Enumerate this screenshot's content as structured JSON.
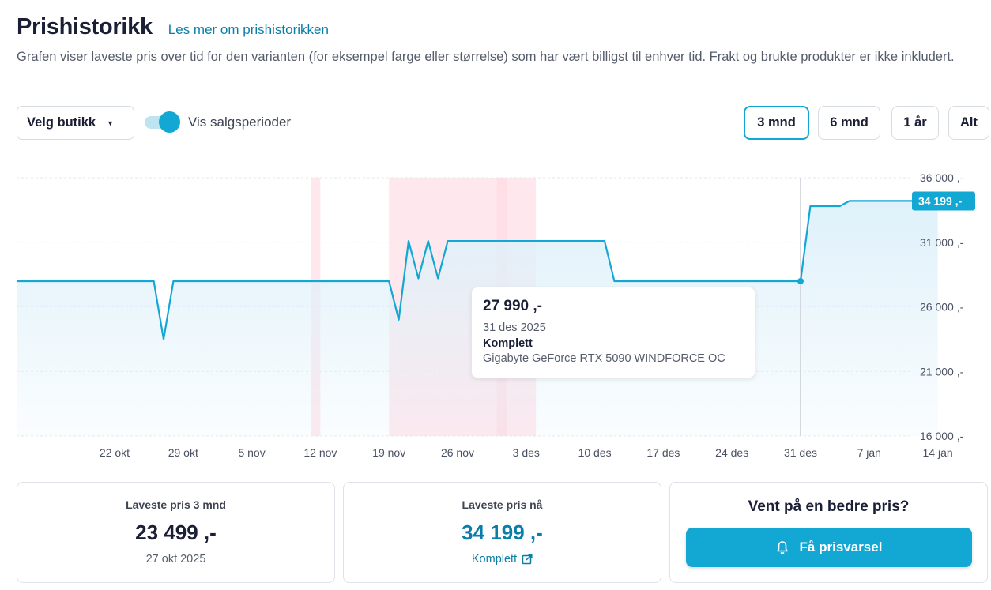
{
  "header": {
    "title": "Prishistorikk",
    "learn_more_link": "Les mer om prishistorikken",
    "description": "Grafen viser laveste pris over tid for den varianten (for eksempel farge eller størrelse) som har vært billigst til enhver tid. Frakt og brukte produkter er ikke inkludert."
  },
  "controls": {
    "store_select": "Velg butikk",
    "sale_toggle_label": "Vis salgsperioder",
    "sale_toggle_on": true,
    "ranges": [
      {
        "label": "3 mnd",
        "active": true
      },
      {
        "label": "6 mnd",
        "active": false
      },
      {
        "label": "1 år",
        "active": false
      },
      {
        "label": "Alt",
        "active": false
      }
    ]
  },
  "chart_data": {
    "type": "line",
    "x_ticks": [
      "22 okt",
      "29 okt",
      "5 nov",
      "12 nov",
      "19 nov",
      "26 nov",
      "3 des",
      "10 des",
      "17 des",
      "24 des",
      "31 des",
      "7 jan",
      "14 jan"
    ],
    "y_ticks": [
      "36 000 ,-",
      "31 000 ,-",
      "26 000 ,-",
      "21 000 ,-",
      "16 000 ,-"
    ],
    "ylim": [
      16000,
      36000
    ],
    "current_price_label": "34 199 ,-",
    "series": [
      {
        "values": [
          [
            "2025-10-12",
            27990
          ],
          [
            "2025-10-26",
            27990
          ],
          [
            "2025-10-27",
            23499
          ],
          [
            "2025-10-28",
            27990
          ],
          [
            "2025-11-19",
            27990
          ],
          [
            "2025-11-20",
            25000
          ],
          [
            "2025-11-21",
            31099
          ],
          [
            "2025-11-22",
            28200
          ],
          [
            "2025-11-23",
            31099
          ],
          [
            "2025-11-24",
            28200
          ],
          [
            "2025-11-25",
            31099
          ],
          [
            "2025-12-11",
            31099
          ],
          [
            "2025-12-12",
            27990
          ],
          [
            "2025-12-31",
            27990
          ],
          [
            "2026-01-01",
            33799
          ],
          [
            "2026-01-04",
            33799
          ],
          [
            "2026-01-05",
            34199
          ],
          [
            "2026-01-14",
            34199
          ]
        ]
      }
    ],
    "sale_periods": [
      [
        "2025-11-11",
        "2025-11-12"
      ],
      [
        "2025-11-19",
        "2025-12-04"
      ],
      [
        "2025-11-30",
        "2025-12-01"
      ]
    ],
    "grid": true,
    "colors": {
      "line": "#13a7d4",
      "fill": "#dff1fa",
      "sale": "#ffd6de",
      "tag": "#13a7d4"
    }
  },
  "tooltip": {
    "price": "27 990 ,-",
    "date": "31 des 2025",
    "store": "Komplett",
    "product": "Gigabyte GeForce RTX 5090 WINDFORCE OC"
  },
  "cards": {
    "lowest3m": {
      "label": "Laveste pris 3 mnd",
      "value": "23 499 ,-",
      "date": "27 okt 2025"
    },
    "lowest_now": {
      "label": "Laveste pris nå",
      "value": "34 199 ,-",
      "store": "Komplett"
    },
    "alert": {
      "title": "Vent på en bedre pris?",
      "button": "Få prisvarsel"
    }
  }
}
